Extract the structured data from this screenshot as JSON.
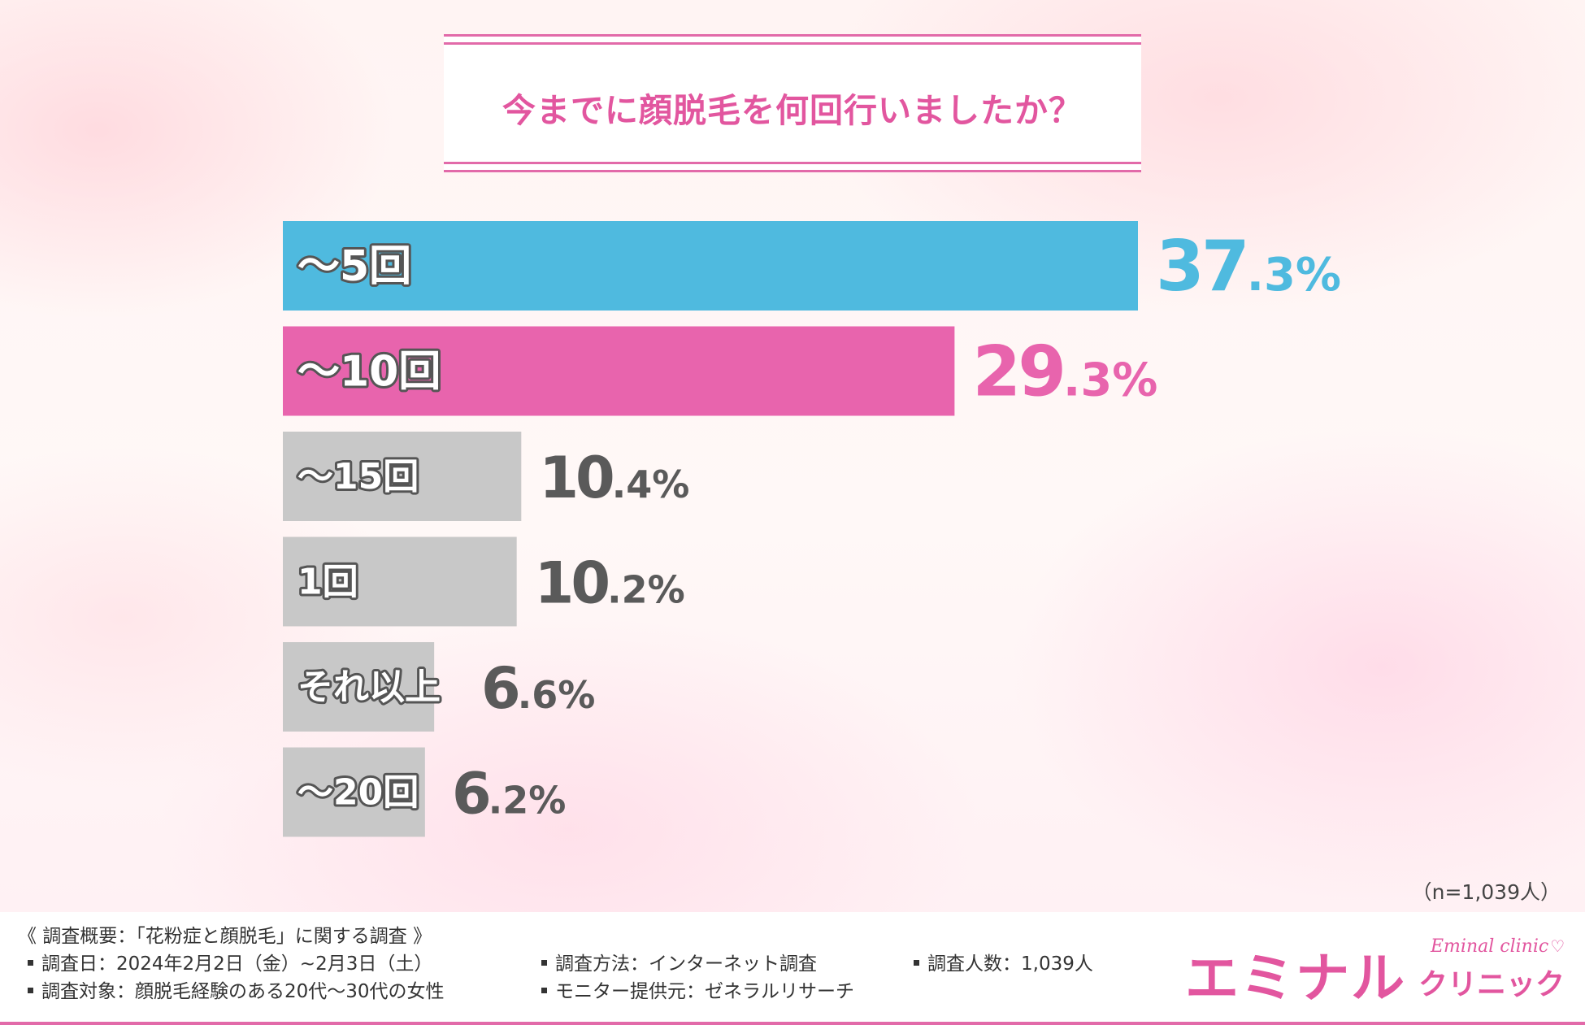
{
  "chart_data": {
    "type": "bar",
    "orientation": "horizontal",
    "title": "今までに顔脱毛を何回行いましたか？",
    "categories": [
      "〜5回",
      "〜10回",
      "〜15回",
      "1回",
      "それ以上",
      "〜20回"
    ],
    "values": [
      37.3,
      29.3,
      10.4,
      10.2,
      6.6,
      6.2
    ],
    "value_labels": [
      {
        "int": "37",
        "dec": ".3%"
      },
      {
        "int": "29",
        "dec": ".3%"
      },
      {
        "int": "10",
        "dec": ".4%"
      },
      {
        "int": "10",
        "dec": ".2%"
      },
      {
        "int": "6",
        "dec": ".6%"
      },
      {
        "int": "6",
        "dec": ".2%"
      }
    ],
    "bar_colors": [
      "#4fbadf",
      "#e864ad",
      "#c8c8c8",
      "#c8c8c8",
      "#c8c8c8",
      "#c8c8c8"
    ],
    "value_colors": [
      "#4fbadf",
      "#e864ad",
      "#5a5a5a",
      "#5a5a5a",
      "#5a5a5a",
      "#5a5a5a"
    ],
    "xlim": [
      0,
      37.3
    ],
    "grid": false,
    "legend": "none"
  },
  "sample_note": "（n=1,039人）",
  "footer": {
    "heading": "《 調査概要：「花粉症と顔脱毛」に関する調査 》",
    "items": {
      "date": "調査日：2024年2月2日（金）~2月3日（土）",
      "target": "調査対象：顔脱毛経験のある20代～30代の女性",
      "method": "調査方法：インターネット調査",
      "provider": "モニター提供元：ゼネラルリサーチ",
      "count": "調査人数：1,039人"
    }
  },
  "logo": {
    "main": "エミナル",
    "sub": "クリニック",
    "script": "Eminal clinic",
    "icon": "heart-icon"
  }
}
